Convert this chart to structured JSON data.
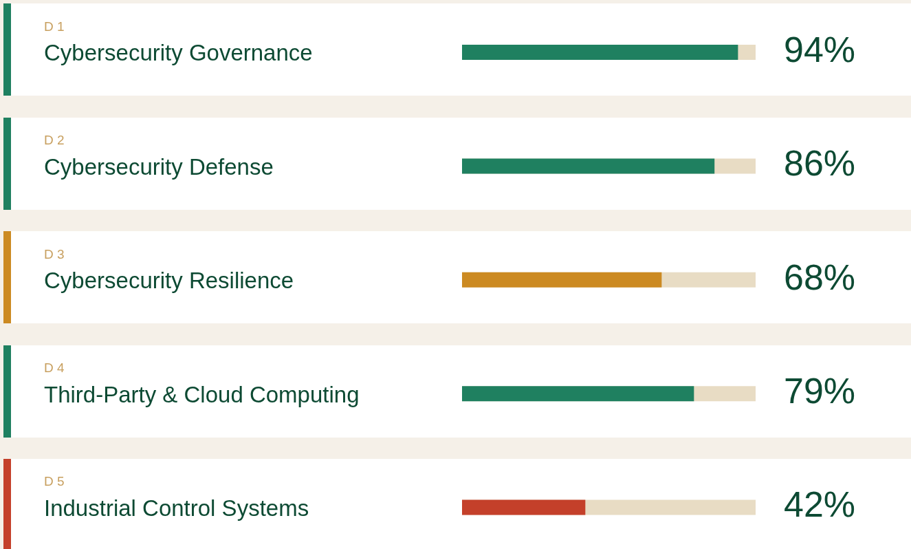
{
  "chart_data": {
    "type": "bar",
    "orientation": "horizontal",
    "categories": [
      "Cybersecurity Governance",
      "Cybersecurity Defense",
      "Cybersecurity Resilience",
      "Third-Party & Cloud Computing",
      "Industrial Control Systems"
    ],
    "annotations": [
      "D 1",
      "D 2",
      "D 3",
      "D 4",
      "D 5"
    ],
    "values": [
      94,
      86,
      68,
      79,
      42
    ],
    "colors": [
      "#1f8060",
      "#1f8060",
      "#cc8a22",
      "#1f8060",
      "#c4402a"
    ],
    "value_labels": [
      "94%",
      "86%",
      "68%",
      "79%",
      "42%"
    ],
    "xlim": [
      0,
      100
    ]
  }
}
